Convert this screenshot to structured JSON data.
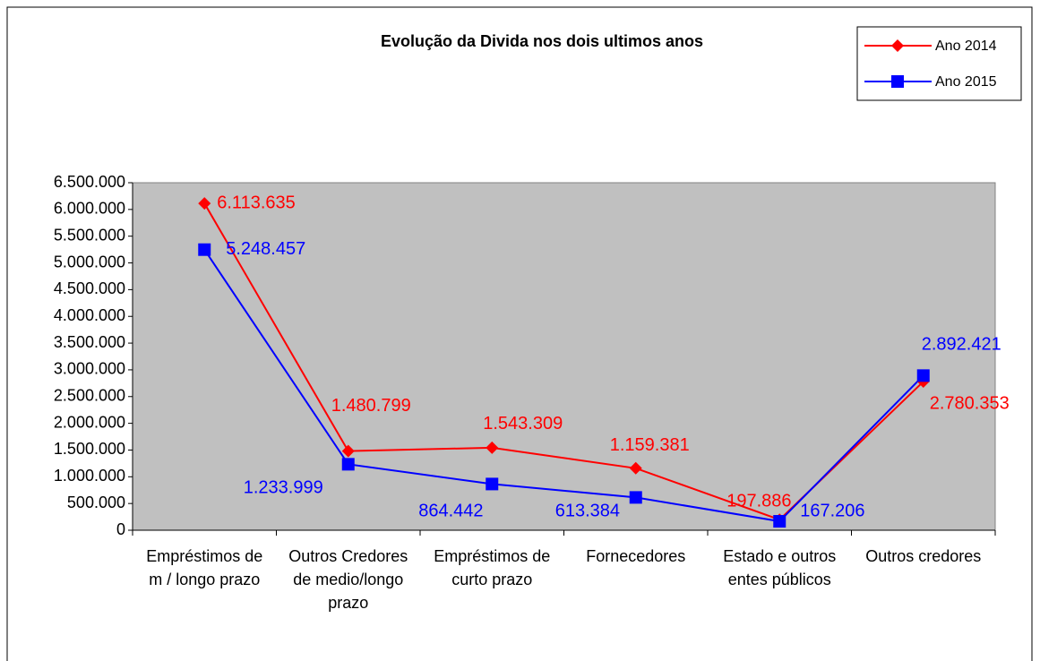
{
  "chart_data": {
    "type": "line",
    "title": "Evolução da Divida nos dois ultimos anos",
    "categories": [
      "Empréstimos de m / longo prazo",
      "Outros Credores de medio/longo prazo",
      "Empréstimos de curto prazo",
      "Fornecedores",
      "Estado e outros entes públicos",
      "Outros credores"
    ],
    "series": [
      {
        "name": "Ano 2014",
        "color": "#ff0000",
        "marker": "diamond",
        "values": [
          6113635,
          1480799,
          1543309,
          1159381,
          197886,
          2780353
        ],
        "value_labels": [
          "6.113.635",
          "1.480.799",
          "1.543.309",
          "1.159.381",
          "197.886",
          "2.780.353"
        ]
      },
      {
        "name": "Ano 2015",
        "color": "#0000ff",
        "marker": "square",
        "values": [
          5248457,
          1233999,
          864442,
          613384,
          167206,
          2892421
        ],
        "value_labels": [
          "5.248.457",
          "1.233.999",
          "864.442",
          "613.384",
          "167.206",
          "2.892.421"
        ]
      }
    ],
    "ylim": [
      0,
      6500000
    ],
    "yticks": [
      0,
      {
        "value": 500000,
        "label": "500.000"
      },
      {
        "value": 1000000,
        "label": "1.000.000"
      },
      {
        "value": 1500000,
        "label": "1.500.000"
      },
      {
        "value": 2000000,
        "label": "2.000.000"
      },
      {
        "value": 2500000,
        "label": "2.500.000"
      },
      {
        "value": 3000000,
        "label": "3.000.000"
      },
      {
        "value": 3500000,
        "label": "3.500.000"
      },
      {
        "value": 4000000,
        "label": "4.000.000"
      },
      {
        "value": 4500000,
        "label": "4.500.000"
      },
      {
        "value": 5000000,
        "label": "5.000.000"
      },
      {
        "value": 5500000,
        "label": "5.500.000"
      },
      {
        "value": 6000000,
        "label": "6.000.000"
      },
      {
        "value": 6500000,
        "label": "6.500.000"
      }
    ],
    "grid": false,
    "plot_background": "#c0c0c0",
    "legend": "top-right"
  }
}
